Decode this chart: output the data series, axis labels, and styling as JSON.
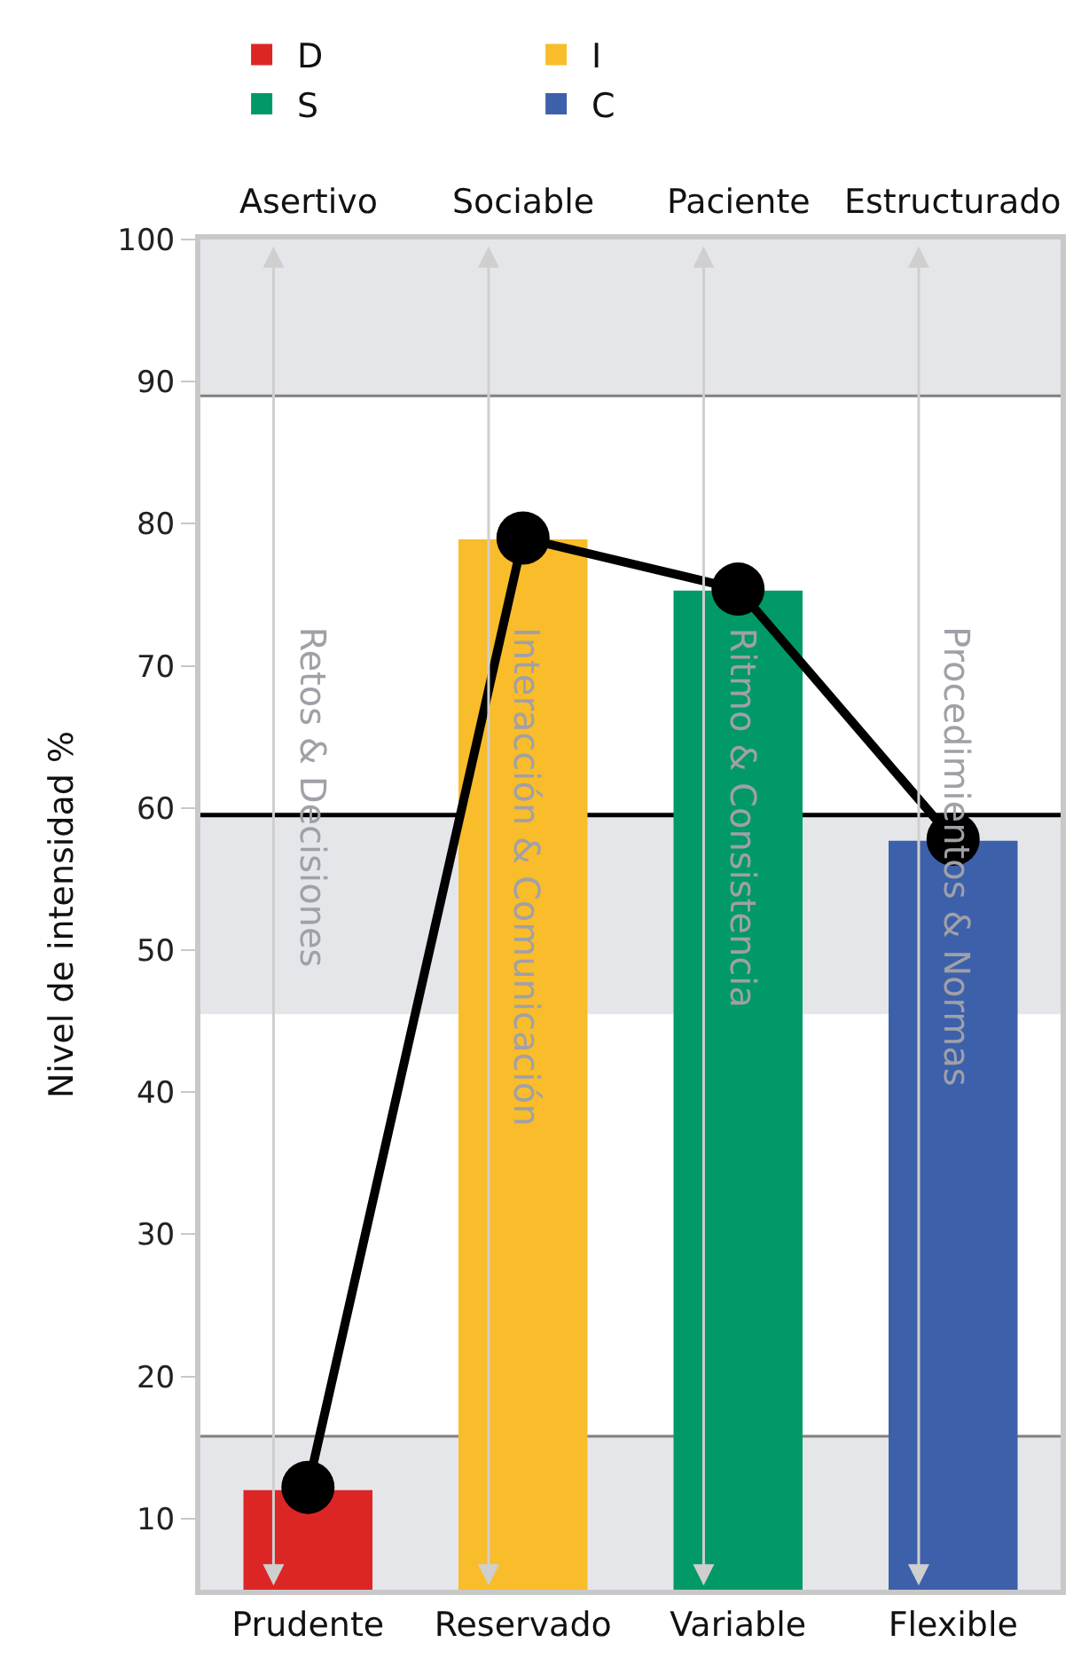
{
  "chart_data": {
    "type": "bar",
    "ylabel": "Nivel de intensidad %",
    "categories": [
      "Prudente",
      "Reservado",
      "Variable",
      "Flexible"
    ],
    "series": [
      {
        "name": "D",
        "color": "#dc2626",
        "values": [
          12,
          null,
          null,
          null
        ]
      },
      {
        "name": "I",
        "color": "#f9bc2a",
        "values": [
          null,
          78.9,
          null,
          null
        ]
      },
      {
        "name": "S",
        "color": "#029968",
        "values": [
          null,
          null,
          75.3,
          null
        ]
      },
      {
        "name": "C",
        "color": "#3d60ab",
        "values": [
          null,
          null,
          null,
          57.7
        ]
      },
      {
        "type": "line",
        "color": "#000000",
        "values": [
          12.2,
          79,
          75.4,
          57.8
        ],
        "marker": "circle"
      }
    ],
    "ylim": [
      5,
      100
    ],
    "yticks": [
      10,
      20,
      30,
      40,
      50,
      60,
      70,
      80,
      90,
      100
    ],
    "bands": [
      {
        "axis": "y",
        "from": 89,
        "to": 100,
        "color": "#e5e6ea"
      },
      {
        "axis": "y",
        "from": 45.5,
        "to": 59.5,
        "color": "#e5e6ea"
      },
      {
        "axis": "y",
        "from": 5,
        "to": 15.8,
        "color": "#e5e6ea"
      }
    ],
    "ref_lines": [
      {
        "axis": "y",
        "value": 89,
        "color": "#808080"
      },
      {
        "axis": "y",
        "value": 59.5,
        "color": "#000000"
      },
      {
        "axis": "y",
        "value": 15.8,
        "color": "#808080"
      }
    ],
    "annotations": [
      "Asertivo",
      "Sociable",
      "Paciente",
      "Estructurado",
      "Retos & Decisiones",
      "Interacción & Comunicación",
      "Ritmo & Consistencia",
      "Procedimientos & Normas"
    ],
    "legend": "top",
    "grid": false
  }
}
